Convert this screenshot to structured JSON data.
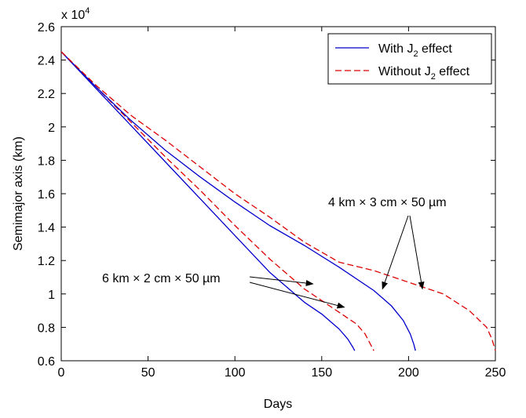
{
  "chart_data": {
    "type": "line",
    "xlabel": "Days",
    "ylabel": "Semimajor axis (km)",
    "y_multiplier_label": {
      "base": "x 10",
      "exponent": "4"
    },
    "xlim": [
      0,
      250
    ],
    "ylim": [
      0.6,
      2.6
    ],
    "x_ticks": [
      0,
      50,
      100,
      150,
      200,
      250
    ],
    "y_ticks": [
      0.6,
      0.8,
      1,
      1.2,
      1.4,
      1.6,
      1.8,
      2,
      2.2,
      2.4,
      2.6
    ],
    "x_tick_labels": [
      "0",
      "50",
      "100",
      "150",
      "200",
      "250"
    ],
    "y_tick_labels": [
      "0.6",
      "0.8",
      "1",
      "1.2",
      "1.4",
      "1.6",
      "1.8",
      "2",
      "2.2",
      "2.4",
      "2.6"
    ],
    "grid": false,
    "legend_position": "top-right",
    "legend": [
      {
        "text": "With J",
        "sub": "2",
        "rest": " effect",
        "style": "solid",
        "color": "#0000cc"
      },
      {
        "text": "Without J",
        "sub": "2",
        "rest": " effect",
        "style": "dashed",
        "color": "#dd0000"
      }
    ],
    "series": [
      {
        "group": "6 km × 2 cm × 50 µm",
        "style": "solid",
        "color": "#0000cc",
        "points": [
          [
            0,
            2.45
          ],
          [
            20,
            2.23
          ],
          [
            40,
            2.01
          ],
          [
            60,
            1.79
          ],
          [
            80,
            1.57
          ],
          [
            100,
            1.35
          ],
          [
            120,
            1.13
          ],
          [
            140,
            0.95
          ],
          [
            150,
            0.88
          ],
          [
            160,
            0.79
          ],
          [
            165,
            0.73
          ],
          [
            168,
            0.68
          ],
          [
            169,
            0.66
          ]
        ]
      },
      {
        "group": "6 km × 2 cm × 50 µm",
        "style": "dashed",
        "color": "#dd0000",
        "points": [
          [
            0,
            2.45
          ],
          [
            20,
            2.24
          ],
          [
            40,
            2.03
          ],
          [
            60,
            1.82
          ],
          [
            80,
            1.62
          ],
          [
            100,
            1.41
          ],
          [
            120,
            1.21
          ],
          [
            140,
            1.03
          ],
          [
            160,
            0.89
          ],
          [
            170,
            0.82
          ],
          [
            175,
            0.76
          ],
          [
            178,
            0.7
          ],
          [
            180,
            0.66
          ]
        ]
      },
      {
        "group": "4 km × 3 cm × 50 µm",
        "style": "solid",
        "color": "#0000cc",
        "points": [
          [
            0,
            2.45
          ],
          [
            20,
            2.24
          ],
          [
            40,
            2.04
          ],
          [
            60,
            1.86
          ],
          [
            80,
            1.7
          ],
          [
            100,
            1.55
          ],
          [
            120,
            1.41
          ],
          [
            140,
            1.29
          ],
          [
            160,
            1.16
          ],
          [
            180,
            1.02
          ],
          [
            190,
            0.93
          ],
          [
            197,
            0.84
          ],
          [
            201,
            0.76
          ],
          [
            203,
            0.7
          ],
          [
            204,
            0.66
          ]
        ]
      },
      {
        "group": "4 km × 3 cm × 50 µm",
        "style": "dashed",
        "color": "#dd0000",
        "points": [
          [
            0,
            2.45
          ],
          [
            20,
            2.25
          ],
          [
            40,
            2.07
          ],
          [
            60,
            1.92
          ],
          [
            80,
            1.76
          ],
          [
            100,
            1.6
          ],
          [
            120,
            1.46
          ],
          [
            140,
            1.31
          ],
          [
            160,
            1.19
          ],
          [
            180,
            1.14
          ],
          [
            200,
            1.07
          ],
          [
            220,
            1.0
          ],
          [
            235,
            0.9
          ],
          [
            245,
            0.8
          ],
          [
            248,
            0.73
          ],
          [
            250,
            0.66
          ]
        ]
      }
    ],
    "annotations": [
      {
        "id": "a6",
        "label": "6 km × 2 cm × 50 µm",
        "arrow_targets": [
          [
            145,
            1.06
          ],
          [
            163,
            0.92
          ]
        ]
      },
      {
        "id": "a4",
        "label": "4 km × 3 cm × 50 µm",
        "arrow_targets": [
          [
            185,
            1.03
          ],
          [
            208,
            1.03
          ]
        ]
      }
    ]
  }
}
